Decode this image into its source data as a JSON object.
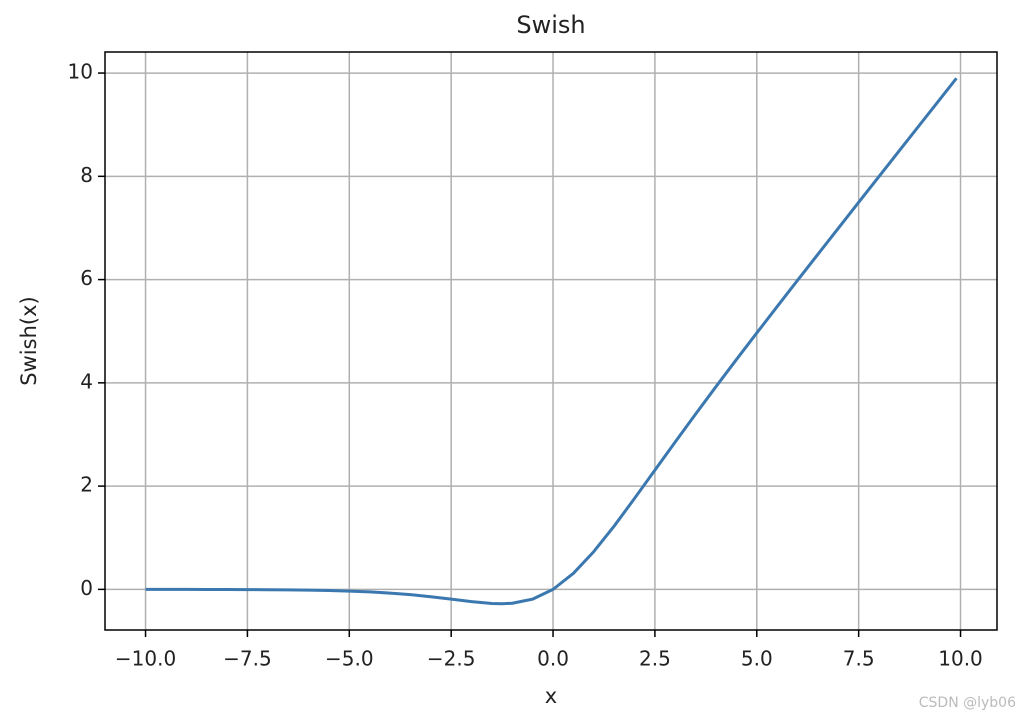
{
  "chart_data": {
    "type": "line",
    "title": "Swish",
    "x_label": "x",
    "y_label": "Swish(x)",
    "watermark": "CSDN @lyb06",
    "x": [
      -10,
      -9.5,
      -9,
      -8.5,
      -8,
      -7.5,
      -7,
      -6.5,
      -6,
      -5.5,
      -5,
      -4.5,
      -4,
      -3.5,
      -3,
      -2.5,
      -2,
      -1.5,
      -1.25,
      -1,
      -0.5,
      0,
      0.5,
      1,
      1.5,
      2,
      2.5,
      3,
      3.5,
      4,
      4.5,
      5,
      5.5,
      6,
      6.5,
      7,
      7.5,
      8,
      8.5,
      9,
      9.5,
      9.9
    ],
    "series": [
      {
        "name": "Swish",
        "color": "#3b78b0",
        "values": [
          -0.0005,
          -0.0007,
          -0.0011,
          -0.0017,
          -0.0027,
          -0.0041,
          -0.0064,
          -0.0098,
          -0.0148,
          -0.0224,
          -0.0335,
          -0.0494,
          -0.0719,
          -0.1026,
          -0.1423,
          -0.1896,
          -0.2384,
          -0.2736,
          -0.2784,
          -0.2689,
          -0.1888,
          0,
          0.3112,
          0.7311,
          1.2264,
          1.7616,
          2.3104,
          2.8577,
          3.3974,
          3.9281,
          4.4505,
          4.9665,
          5.4776,
          5.9852,
          6.4903,
          6.9936,
          7.4959,
          7.9973,
          8.4983,
          8.9989,
          9.4993,
          9.8995
        ]
      }
    ],
    "xlim": [
      -10.995,
      10.895
    ],
    "ylim": [
      -0.787,
      10.408
    ],
    "xticks": [
      {
        "value": -10,
        "label": "−10.0"
      },
      {
        "value": -7.5,
        "label": "−7.5"
      },
      {
        "value": -5,
        "label": "−5.0"
      },
      {
        "value": -2.5,
        "label": "−2.5"
      },
      {
        "value": 0,
        "label": "0.0"
      },
      {
        "value": 2.5,
        "label": "2.5"
      },
      {
        "value": 5,
        "label": "5.0"
      },
      {
        "value": 7.5,
        "label": "7.5"
      },
      {
        "value": 10,
        "label": "10.0"
      }
    ],
    "yticks": [
      0,
      2,
      4,
      6,
      8,
      10
    ],
    "grid": true
  }
}
